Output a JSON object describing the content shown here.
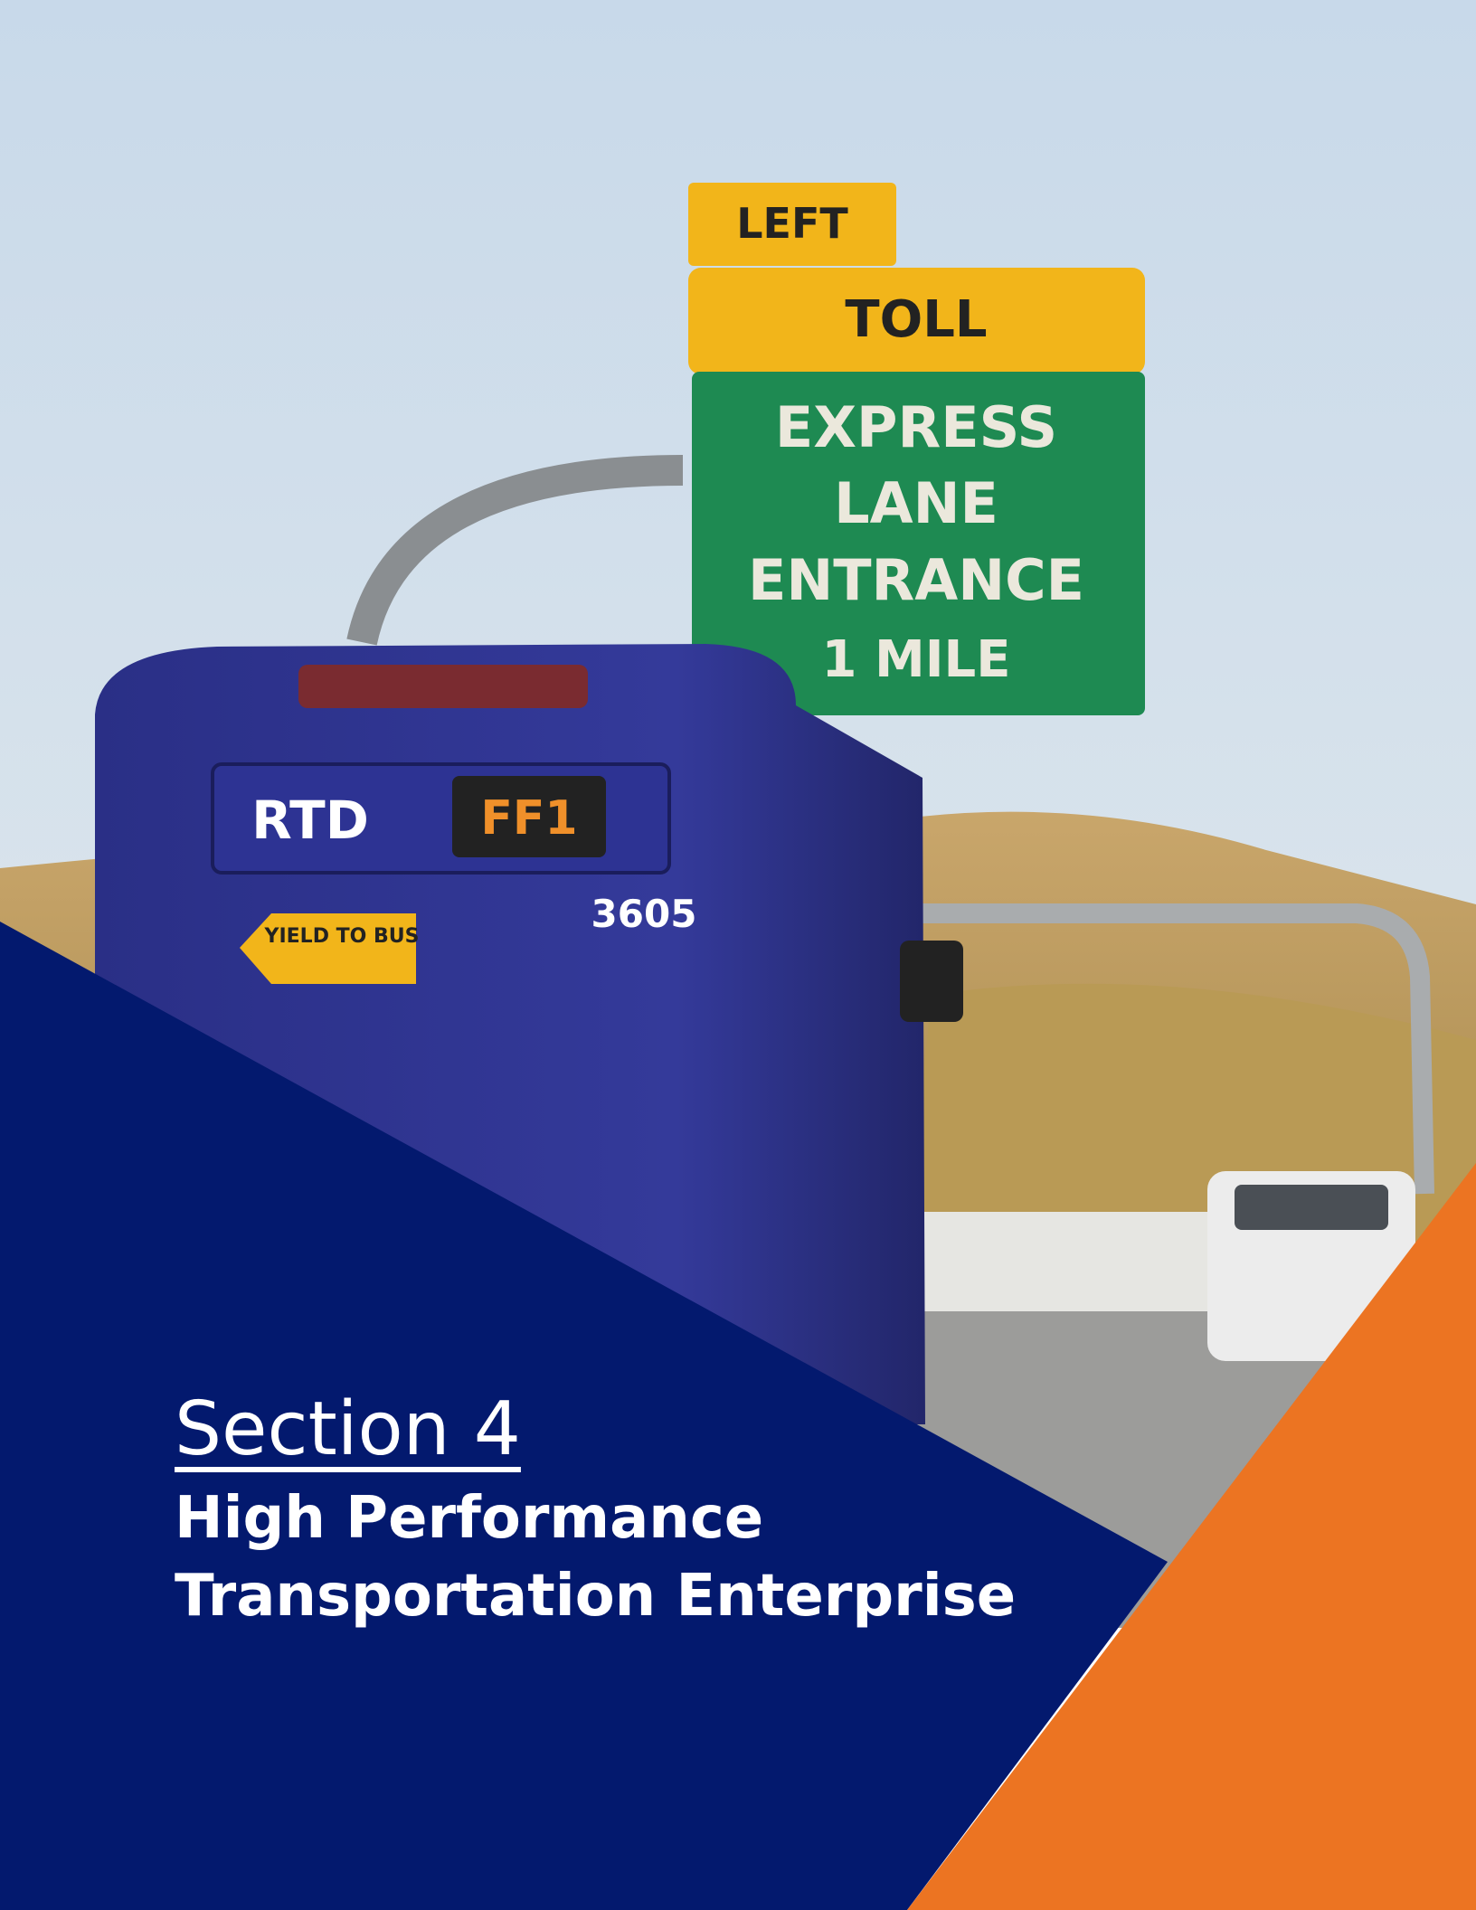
{
  "photo": {
    "sign": {
      "top": "LEFT",
      "toll": "TOLL",
      "lines": [
        "EXPRESS",
        "LANE",
        "ENTRANCE",
        "1 MILE"
      ]
    },
    "bus": {
      "logo": "RTD",
      "route": "FF1",
      "number": "3605",
      "sticker": "YIELD TO BUS"
    }
  },
  "section": {
    "label": "Section 4",
    "title": [
      "High Performance",
      "Transportation Enterprise"
    ]
  }
}
